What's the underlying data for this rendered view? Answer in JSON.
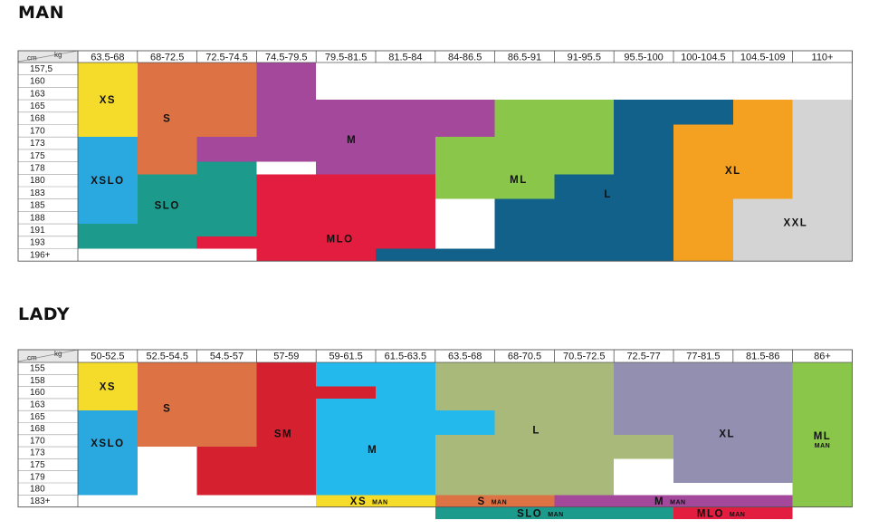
{
  "man": {
    "title": "MAN",
    "cm_unit": "cm",
    "kg_unit": "kg",
    "weights": [
      "63.5-68",
      "68-72.5",
      "72.5-74.5",
      "74.5-79.5",
      "79.5-81.5",
      "81.5-84",
      "84-86.5",
      "86.5-91",
      "91-95.5",
      "95.5-100",
      "100-104.5",
      "104.5-109",
      "110+"
    ],
    "heights": [
      "157,5",
      "160",
      "163",
      "165",
      "168",
      "170",
      "173",
      "175",
      "178",
      "180",
      "183",
      "185",
      "188",
      "191",
      "193",
      "196+"
    ],
    "sizes": [
      {
        "label": "XS",
        "color": "#f5dc2a",
        "rects": [
          [
            0,
            0,
            1,
            6
          ]
        ],
        "label_at": [
          0.5,
          3
        ]
      },
      {
        "label": "S",
        "color": "#dd7244",
        "rects": [
          [
            1,
            0,
            3,
            6
          ],
          [
            1,
            6,
            2,
            9
          ]
        ],
        "label_at": [
          1.5,
          4.5
        ]
      },
      {
        "label": "M",
        "color": "#a3489b",
        "rects": [
          [
            3,
            0,
            4,
            3
          ],
          [
            3,
            3,
            7,
            6
          ],
          [
            2,
            6,
            7,
            8
          ],
          [
            4,
            8,
            6,
            9
          ]
        ],
        "label_at": [
          4.6,
          6.2
        ]
      },
      {
        "label": "XSLO",
        "color": "#2aa8e0",
        "rects": [
          [
            0,
            6,
            1,
            13
          ]
        ],
        "label_at": [
          0.5,
          9.5
        ]
      },
      {
        "label": "SLO",
        "color": "#1c9a8c",
        "rects": [
          [
            3,
            8,
            3,
            9
          ],
          [
            2,
            8,
            3,
            14
          ],
          [
            1,
            9,
            3,
            14
          ],
          [
            0,
            13,
            2,
            15
          ]
        ],
        "label_at": [
          1.5,
          11.5
        ]
      },
      {
        "label": "MLO",
        "color": "#e21d3f",
        "rects": [
          [
            4,
            9,
            5,
            10
          ],
          [
            3,
            9,
            6,
            14
          ],
          [
            2,
            14,
            6,
            15
          ],
          [
            3,
            15,
            5,
            16
          ]
        ],
        "label_at": [
          4.4,
          14.2
        ]
      },
      {
        "label": "ML",
        "color": "#8ac64a",
        "rects": [
          [
            7,
            3,
            9,
            6
          ],
          [
            6,
            6,
            9,
            9
          ],
          [
            6,
            9,
            8,
            11
          ],
          [
            7,
            11,
            8,
            12
          ]
        ],
        "label_at": [
          7.4,
          9.4
        ]
      },
      {
        "label": "L",
        "color": "#12618a",
        "rects": [
          [
            9,
            3,
            11,
            5
          ],
          [
            9,
            5,
            10,
            16
          ],
          [
            8,
            9,
            10,
            16
          ],
          [
            7,
            11,
            10,
            16
          ],
          [
            5,
            15,
            10,
            16
          ]
        ],
        "label_at": [
          8.9,
          10.6
        ]
      },
      {
        "label": "XL",
        "color": "#f4a020",
        "rects": [
          [
            11,
            3,
            12,
            5
          ],
          [
            10,
            5,
            12,
            16
          ]
        ],
        "label_at": [
          11,
          8.7
        ]
      },
      {
        "label": "XXL",
        "color": "#d4d4d4",
        "rects": [
          [
            12,
            3,
            13,
            16
          ],
          [
            11,
            11,
            12,
            16
          ]
        ],
        "label_at": [
          12.05,
          12.9
        ]
      }
    ]
  },
  "lady": {
    "title": "LADY",
    "cm_unit": "cm",
    "kg_unit": "kg",
    "weights": [
      "50-52.5",
      "52.5-54.5",
      "54.5-57",
      "57-59",
      "59-61.5",
      "61.5-63.5",
      "63.5-68",
      "68-70.5",
      "70.5-72.5",
      "72.5-77",
      "77-81.5",
      "81.5-86",
      "86+"
    ],
    "heights": [
      "155",
      "158",
      "160",
      "163",
      "165",
      "168",
      "170",
      "173",
      "175",
      "179",
      "180",
      "183+"
    ],
    "sizes": [
      {
        "label": "XS",
        "color": "#f5dc2a",
        "rects": [
          [
            0,
            0,
            1,
            4
          ]
        ],
        "label_at": [
          0.5,
          2
        ]
      },
      {
        "label": "S",
        "color": "#dd7244",
        "rects": [
          [
            1,
            0,
            3,
            7
          ],
          [
            2,
            7,
            3,
            8
          ]
        ],
        "label_at": [
          1.5,
          3.8
        ]
      },
      {
        "label": "XSLO",
        "color": "#2aa8e0",
        "rects": [
          [
            0,
            4,
            1,
            11
          ]
        ],
        "label_at": [
          0.5,
          6.7
        ]
      },
      {
        "label": "SM",
        "color": "#d4202f",
        "rects": [
          [
            3,
            0,
            4,
            3
          ],
          [
            4,
            2,
            5,
            4
          ],
          [
            2,
            7,
            4,
            11
          ],
          [
            3,
            3,
            4,
            7
          ]
        ],
        "label_at": [
          3.45,
          5.9
        ]
      },
      {
        "label": "M",
        "color": "#23b9ec",
        "rects": [
          [
            4,
            0,
            6,
            2
          ],
          [
            5,
            2,
            6,
            4
          ],
          [
            6,
            4,
            7,
            6
          ],
          [
            4,
            4,
            7,
            11
          ],
          [
            4,
            3,
            5,
            4
          ]
        ],
        "label_at": [
          4.95,
          7.2
        ]
      },
      {
        "label": "L",
        "color": "#a8b97a",
        "rects": [
          [
            6,
            0,
            9,
            4
          ],
          [
            7,
            4,
            9,
            6
          ],
          [
            6,
            6,
            10,
            8
          ],
          [
            6,
            8,
            9,
            11
          ]
        ],
        "label_at": [
          7.7,
          5.6
        ]
      },
      {
        "label": "XL",
        "color": "#928fb0",
        "rects": [
          [
            9,
            0,
            12,
            6
          ],
          [
            10,
            6,
            12,
            10
          ]
        ],
        "label_at": [
          10.9,
          5.9
        ]
      },
      {
        "label": "ML",
        "suffix": "MAN",
        "color": "#8ac64a",
        "rects": [
          [
            12,
            0,
            13,
            12
          ]
        ],
        "label_at": [
          12.5,
          6.1
        ]
      },
      {
        "label": "XS",
        "suffix": "MAN",
        "color": "#f5dc2a",
        "rects": [
          [
            4,
            11,
            6,
            12
          ]
        ],
        "label_at": [
          4.85,
          11.5
        ]
      },
      {
        "label": "S",
        "suffix": "MAN",
        "color": "#dd7244",
        "rects": [
          [
            6,
            11,
            8,
            12
          ]
        ],
        "label_at": [
          6.85,
          11.5
        ]
      },
      {
        "label": "M",
        "suffix": "MAN",
        "color": "#a3489b",
        "rects": [
          [
            8,
            11,
            12,
            12
          ]
        ],
        "label_at": [
          9.85,
          11.5
        ]
      },
      {
        "label": "SLO",
        "suffix": "MAN",
        "color": "#1c9a8c",
        "rects": [
          [
            6,
            12,
            10,
            13
          ]
        ],
        "label_at": [
          7.8,
          12.5
        ]
      },
      {
        "label": "MLO",
        "suffix": "MAN",
        "color": "#e21d3f",
        "rects": [
          [
            10,
            12,
            12,
            13
          ]
        ],
        "label_at": [
          10.85,
          12.5
        ]
      }
    ]
  }
}
